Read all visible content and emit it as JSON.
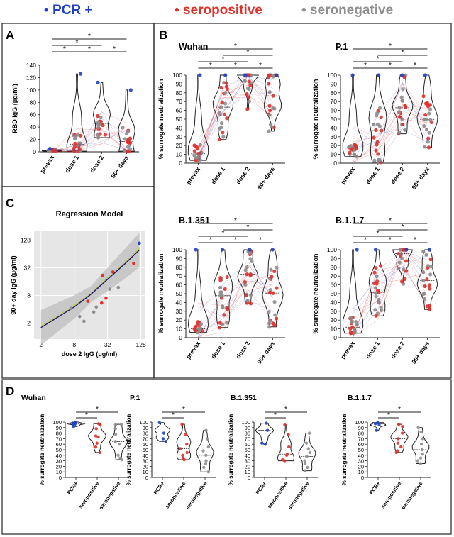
{
  "legend": [
    {
      "label": "PCR +",
      "color": "#1f3fc4"
    },
    {
      "label": "seropositive",
      "color": "#e0302a"
    },
    {
      "label": "seronegative",
      "color": "#8e8e8e"
    }
  ],
  "colors": {
    "pcr": "#1f3fc4",
    "seropositive": "#e0302a",
    "seronegative": "#8e8e8e",
    "panel_bg": "#e6e6e6",
    "fit_line": "#1a1a5e",
    "fit_alt": "#b8c43a"
  },
  "panels": {
    "A": "A",
    "B": "B",
    "C": "C",
    "D": "D"
  },
  "star": "*",
  "chart_data": [
    {
      "id": "A",
      "type": "violin",
      "ylabel": "RBD IgG (μg/ml)",
      "categories": [
        "prevax",
        "dose 1",
        "dose 2",
        "90+ days"
      ],
      "ylim": [
        0,
        140
      ],
      "yticks": [
        0,
        20,
        40,
        60,
        80,
        100,
        120,
        140
      ],
      "medians": [
        0,
        8,
        38,
        18
      ],
      "maxima": [
        5,
        126,
        112,
        100
      ],
      "significance": [
        [
          "prevax",
          "dose 1"
        ],
        [
          "dose 1",
          "dose 2"
        ],
        [
          "prevax",
          "dose 2"
        ],
        [
          "dose 2",
          "90+ days"
        ],
        [
          "prevax",
          "90+ days"
        ]
      ]
    },
    {
      "id": "B-wuhan",
      "type": "violin",
      "title": "Wuhan",
      "ylabel": "% surrogate neutralization",
      "categories": [
        "prevax",
        "dose 1",
        "dose 2",
        "90+ days"
      ],
      "ylim": [
        0,
        100
      ],
      "yticks": [
        0,
        10,
        20,
        30,
        40,
        50,
        60,
        70,
        80,
        90,
        100
      ],
      "medians": [
        12,
        60,
        96,
        70
      ]
    },
    {
      "id": "B-p1",
      "type": "violin",
      "title": "P.1",
      "ylabel": "% surrogate neutralization",
      "categories": [
        "prevax",
        "dose 1",
        "dose 2",
        "90+ days"
      ],
      "ylim": [
        0,
        100
      ],
      "yticks": [
        0,
        10,
        20,
        30,
        40,
        50,
        60,
        70,
        80,
        90,
        100
      ],
      "medians": [
        12,
        28,
        68,
        48
      ]
    },
    {
      "id": "B-b1351",
      "type": "violin",
      "title": "B.1.351",
      "ylabel": "% surrogate neutralization",
      "categories": [
        "prevax",
        "dose 1",
        "dose 2",
        "90+ days"
      ],
      "ylim": [
        0,
        100
      ],
      "yticks": [
        0,
        10,
        20,
        30,
        40,
        50,
        60,
        70,
        80,
        90,
        100
      ],
      "medians": [
        10,
        34,
        68,
        45
      ]
    },
    {
      "id": "B-b117",
      "type": "violin",
      "title": "B.1.1.7",
      "ylabel": "% surrogate neutralization",
      "categories": [
        "prevax",
        "dose 1",
        "dose 2",
        "90+ days"
      ],
      "ylim": [
        0,
        100
      ],
      "yticks": [
        0,
        10,
        20,
        30,
        40,
        50,
        60,
        70,
        80,
        90,
        100
      ],
      "medians": [
        14,
        50,
        94,
        64
      ]
    },
    {
      "id": "C",
      "type": "scatter",
      "title": "Regression Model",
      "xlabel": "dose 2 IgG (μg/ml)",
      "ylabel": "90+ day IgG (μg/ml)",
      "xscale": "log2",
      "yscale": "log2",
      "xticks": [
        2,
        8,
        32,
        128
      ],
      "yticks": [
        2,
        8,
        32,
        128
      ],
      "xlim": [
        1.5,
        150
      ],
      "ylim": [
        0.9,
        200
      ],
      "points": [
        {
          "x": 120,
          "y": 110,
          "g": "pcr"
        },
        {
          "x": 26,
          "y": 22,
          "g": "seropositive"
        },
        {
          "x": 40,
          "y": 26,
          "g": "seropositive"
        },
        {
          "x": 95,
          "y": 40,
          "g": "seropositive"
        },
        {
          "x": 30,
          "y": 7,
          "g": "seropositive"
        },
        {
          "x": 25,
          "y": 5.5,
          "g": "seropositive"
        },
        {
          "x": 14,
          "y": 6,
          "g": "seropositive"
        },
        {
          "x": 20,
          "y": 4.5,
          "g": "seronegative"
        },
        {
          "x": 12,
          "y": 2.2,
          "g": "seronegative"
        },
        {
          "x": 7,
          "y": 4.2,
          "g": "seronegative"
        },
        {
          "x": 10,
          "y": 2.8,
          "g": "seronegative"
        },
        {
          "x": 35,
          "y": 11,
          "g": "seronegative"
        },
        {
          "x": 50,
          "y": 12,
          "g": "seronegative"
        },
        {
          "x": 18,
          "y": 3.5,
          "g": "seronegative"
        }
      ],
      "fit": [
        [
          2,
          1.6
        ],
        [
          8,
          4.5
        ],
        [
          16,
          8.5
        ],
        [
          32,
          18
        ],
        [
          64,
          38
        ],
        [
          120,
          78
        ]
      ]
    },
    {
      "id": "D-wuhan",
      "type": "violin",
      "title": "Wuhan",
      "ylabel": "% surrogate neutralization",
      "categories": [
        "PCR+",
        "seropositive",
        "seronegative"
      ],
      "ylim": [
        0,
        100
      ],
      "yticks": [
        0,
        10,
        20,
        30,
        40,
        50,
        60,
        70,
        80,
        90,
        100
      ],
      "points": [
        [
          100,
          98,
          97,
          95,
          92
        ],
        [
          97,
          95,
          88,
          75,
          73,
          62,
          55,
          45
        ],
        [
          96,
          95,
          88,
          78,
          65,
          60,
          40,
          35,
          32
        ]
      ]
    },
    {
      "id": "D-p1",
      "type": "violin",
      "title": "P.1",
      "ylabel": "% surrogate neutralization",
      "categories": [
        "PCR+",
        "seropositive",
        "seronegative"
      ],
      "ylim": [
        0,
        100
      ],
      "yticks": [
        0,
        10,
        20,
        30,
        40,
        50,
        60,
        70,
        80,
        90,
        100
      ],
      "points": [
        [
          99,
          80,
          70,
          65
        ],
        [
          96,
          78,
          60,
          52,
          45,
          40,
          35,
          32
        ],
        [
          85,
          70,
          55,
          48,
          40,
          30,
          25,
          18,
          10
        ]
      ]
    },
    {
      "id": "D-b1351",
      "type": "violin",
      "title": "B.1.351",
      "ylabel": "% surrogate neutralization",
      "categories": [
        "PCR+",
        "seropositive",
        "seronegative"
      ],
      "ylim": [
        0,
        100
      ],
      "yticks": [
        0,
        10,
        20,
        30,
        40,
        50,
        60,
        70,
        80,
        90,
        100
      ],
      "points": [
        [
          98,
          85,
          62,
          60
        ],
        [
          95,
          78,
          55,
          42,
          40,
          32,
          30
        ],
        [
          80,
          62,
          52,
          45,
          38,
          30,
          25,
          18,
          12
        ]
      ]
    },
    {
      "id": "D-b117",
      "type": "violin",
      "title": "B.1.1.7",
      "ylabel": "% surrogate neutralization",
      "categories": [
        "PCR+",
        "seropositive",
        "seronegative"
      ],
      "ylim": [
        0,
        100
      ],
      "yticks": [
        0,
        10,
        20,
        30,
        40,
        50,
        60,
        70,
        80,
        90,
        100
      ],
      "points": [
        [
          99,
          97,
          95,
          85
        ],
        [
          96,
          92,
          80,
          70,
          62,
          55,
          48,
          45
        ],
        [
          90,
          82,
          70,
          60,
          50,
          42,
          35,
          30,
          25
        ]
      ]
    }
  ]
}
